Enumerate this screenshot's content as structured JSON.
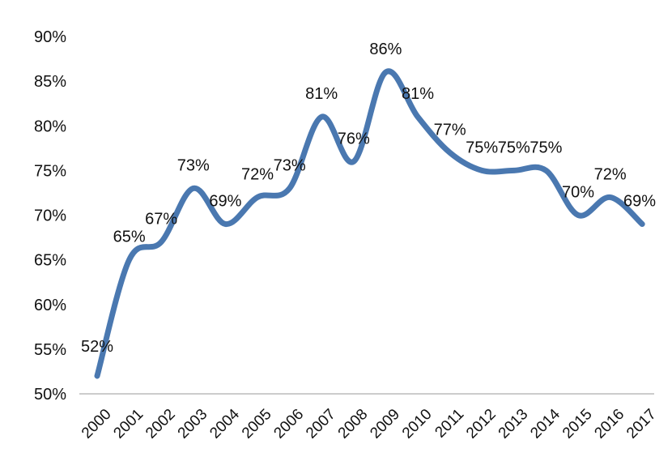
{
  "chart_data": {
    "type": "line",
    "title": "",
    "xlabel": "",
    "ylabel": "",
    "categories": [
      "2000",
      "2001",
      "2002",
      "2003",
      "2004",
      "2005",
      "2006",
      "2007",
      "2008",
      "2009",
      "2010",
      "2011",
      "2012",
      "2013",
      "2014",
      "2015",
      "2016",
      "2017"
    ],
    "series": [
      {
        "values": [
          52,
          65,
          67,
          73,
          69,
          72,
          73,
          81,
          76,
          86,
          81,
          77,
          75,
          75,
          75,
          70,
          72,
          69
        ],
        "labels": [
          "52%",
          "65%",
          "67%",
          "73%",
          "69%",
          "72%",
          "73%",
          "81%",
          "76%",
          "86%",
          "81%",
          "77%",
          "75%",
          "75%",
          "75%",
          "70%",
          "72%",
          "69%"
        ],
        "color": "#4a78b0",
        "smooth": true
      }
    ],
    "ylim": [
      50,
      90
    ],
    "yticks": [
      50,
      55,
      60,
      65,
      70,
      75,
      80,
      85,
      90
    ],
    "ytick_labels": [
      "50%",
      "55%",
      "60%",
      "65%",
      "70%",
      "75%",
      "80%",
      "85%",
      "90%"
    ],
    "grid": false,
    "legend": "none"
  }
}
